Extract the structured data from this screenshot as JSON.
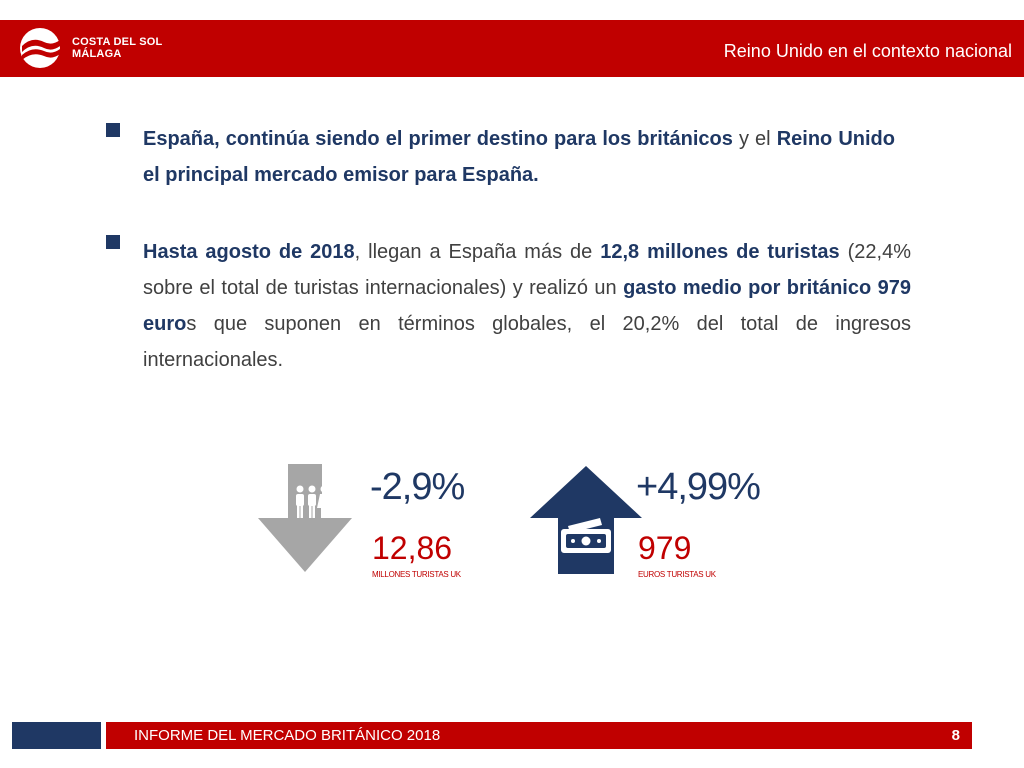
{
  "header": {
    "logo_line1": "COSTA DEL SOL",
    "logo_line2": "MÁLAGA",
    "title": "Reino Unido en el contexto nacional"
  },
  "bullets": [
    {
      "p1_a": "España, continúa siendo el primer destino para los británicos",
      "p1_b": " y el ",
      "p1_c": "Reino Unido el principal mercado emisor para España."
    },
    {
      "p2_a": "Hasta agosto de 2018",
      "p2_b": ", llegan a España más de ",
      "p2_c": "12,8 millones de turistas",
      "p2_d": " (22,4% sobre el total de turistas internacionales) y realizó un ",
      "p2_e": "gasto medio por británico 979 euro",
      "p2_f": "s que suponen en términos globales, el 20,2% del total de ingresos internacionales."
    }
  ],
  "stats": {
    "tourists": {
      "change": "-2,9%",
      "value": "12,86",
      "caption": "MILLONES TURISTAS UK",
      "icon": "people-icon",
      "direction": "down"
    },
    "spend": {
      "change": "+4,99%",
      "value": "979",
      "caption": "EUROS TURISTAS UK",
      "icon": "money-icon",
      "direction": "up"
    }
  },
  "footer": {
    "title": "INFORME DEL MERCADO BRITÁNICO 2018",
    "page": "8"
  },
  "colors": {
    "brand_red": "#c00000",
    "navy": "#1f3864",
    "gray_arrow": "#a6a6a6"
  }
}
